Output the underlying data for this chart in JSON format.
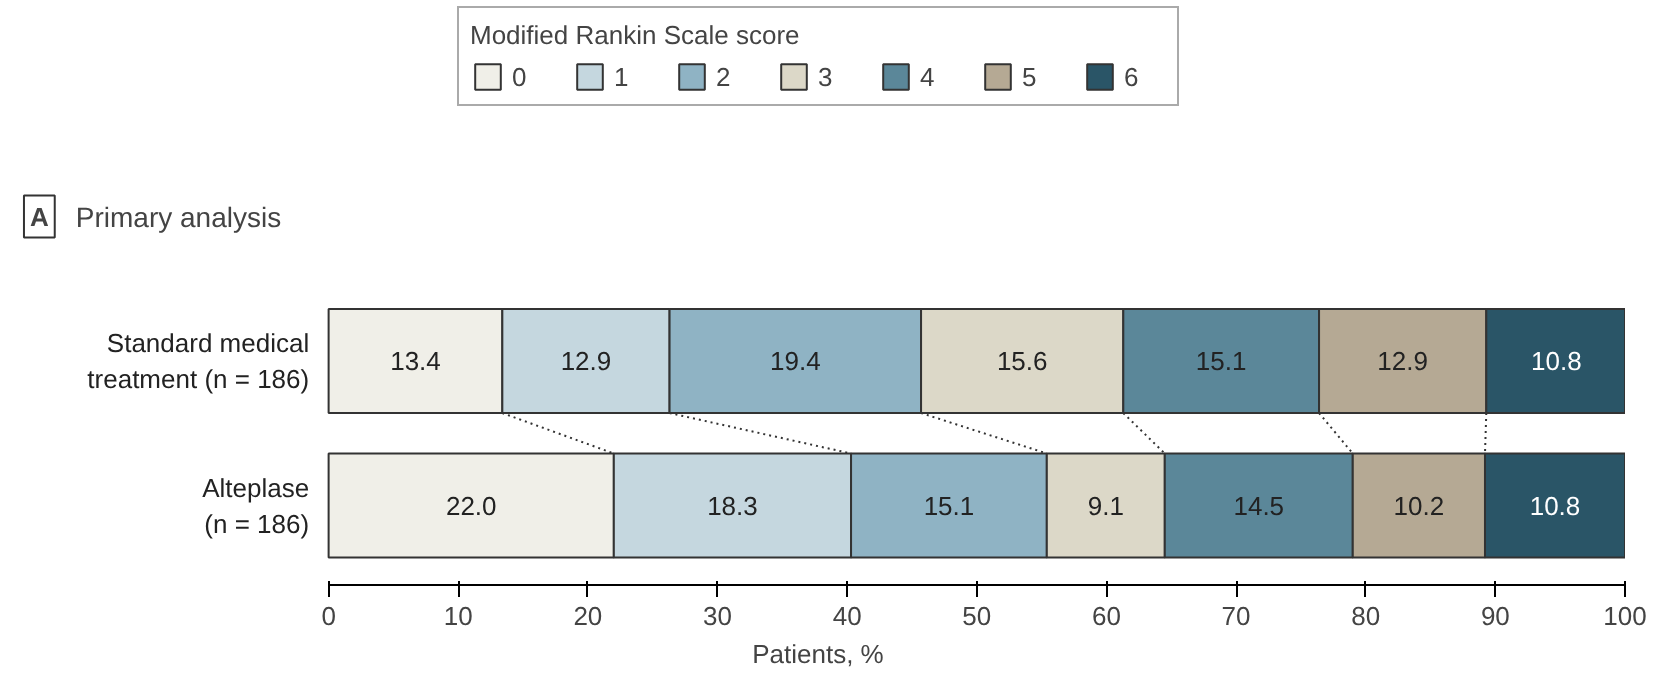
{
  "chart_data": {
    "type": "bar",
    "orientation": "horizontal",
    "stacked": true,
    "title": "Primary analysis",
    "annotations": [
      "A"
    ],
    "xlabel": "Patients, %",
    "legend_title": "Modified Rankin Scale score",
    "legend": "top",
    "categories": [
      "Standard medical\ntreatment (n = 186)",
      "Alteplase\n(n = 186)"
    ],
    "xlim": [
      0,
      100
    ],
    "xticks": [
      0,
      10,
      20,
      30,
      40,
      50,
      60,
      70,
      80,
      90,
      100
    ],
    "grid": false,
    "series": [
      {
        "name": "0",
        "color": "#f0efe8",
        "values": [
          13.4,
          22.0
        ],
        "value_labels": [
          "13.4",
          "22.0"
        ]
      },
      {
        "name": "1",
        "color": "#c5d7df",
        "values": [
          12.9,
          18.3
        ],
        "value_labels": [
          "12.9",
          "18.3"
        ]
      },
      {
        "name": "2",
        "color": "#8fb3c4",
        "values": [
          19.4,
          15.1
        ],
        "value_labels": [
          "19.4",
          "15.1"
        ]
      },
      {
        "name": "3",
        "color": "#dcd8c8",
        "values": [
          15.6,
          9.1
        ],
        "value_labels": [
          "15.6",
          "9.1"
        ]
      },
      {
        "name": "4",
        "color": "#5b8799",
        "values": [
          15.1,
          14.5
        ],
        "value_labels": [
          "15.1",
          "14.5"
        ]
      },
      {
        "name": "5",
        "color": "#b5a994",
        "values": [
          12.9,
          10.2
        ],
        "value_labels": [
          "12.9",
          "10.2"
        ]
      },
      {
        "name": "6",
        "color": "#2a5567",
        "values": [
          10.8,
          10.8
        ],
        "value_labels": [
          "10.8",
          "10.8"
        ]
      }
    ]
  }
}
